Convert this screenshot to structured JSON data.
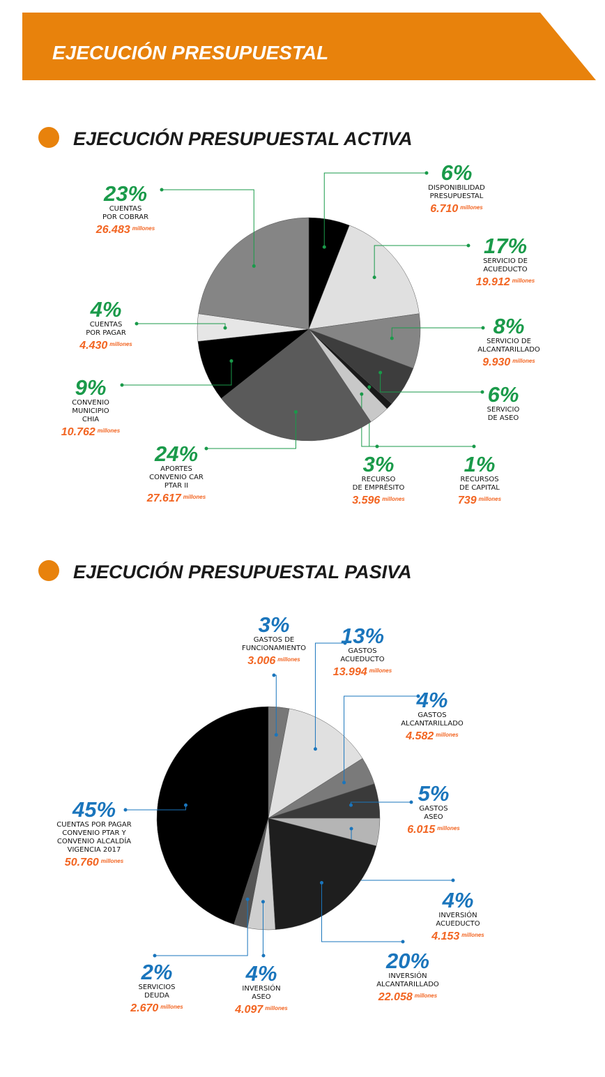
{
  "header": {
    "title": "EJECUCIÓN PRESUPUESTAL"
  },
  "chart_data": [
    {
      "type": "pie",
      "title": "EJECUCIÓN PRESUPUESTAL ACTIVA",
      "unit": "millones",
      "categories": [
        "DISPONIBILIDAD\nPRESUPUESTAL",
        "SERVICIO DE\nACUEDUCTO",
        "SERVICIO DE\nALCANTARILLADO",
        "SERVICIO\nDE ASEO",
        "RECURSOS\nDE CAPITAL",
        "RECURSO\nDE EMPRÉSITO",
        "APORTES\nCONVENIO CAR\nPTAR II",
        "CONVENIO\nMUNICIPIO\nCHIA",
        "CUENTAS\nPOR PAGAR",
        "CUENTAS\nPOR COBRAR"
      ],
      "values": [
        6,
        17,
        8,
        6,
        1,
        3,
        24,
        9,
        4,
        23
      ],
      "value_labels": [
        "6%",
        "17%",
        "8%",
        "6%",
        "1%",
        "3%",
        "24%",
        "9%",
        "4%",
        "23%"
      ],
      "amounts": [
        6710,
        19912,
        9930,
        null,
        739,
        3596,
        27617,
        10762,
        4430,
        26483
      ],
      "amount_labels": [
        "6.710",
        "19.912",
        "9.930",
        null,
        "739",
        "3.596",
        "27.617",
        "10.762",
        "4.430",
        "26.483"
      ],
      "colors": [
        "#000000",
        "#e0e0e0",
        "#858585",
        "#3d3d3d",
        "#1a1a1a",
        "#c8c8c8",
        "#5a5a5a",
        "#000000",
        "#e6e6e6",
        "#858585"
      ],
      "label_color": "#1a9a4a",
      "amount_color": "#f26522"
    },
    {
      "type": "pie",
      "title": "EJECUCIÓN PRESUPUESTAL PASIVA",
      "unit": "millones",
      "categories": [
        "GASTOS DE\nFUNCIONAMIENTO",
        "GASTOS\nACUEDUCTO",
        "GASTOS\nALCANTARILLADO",
        "GASTOS\nASEO",
        "INVERSIÓN\nACUEDUCTO",
        "INVERSIÓN\nALCANTARILLADO",
        "INVERSIÓN\nASEO",
        "SERVICIOS\nDEUDA",
        "CUENTAS POR PAGAR\nCONVENIO PTAR Y\nCONVENIO ALCALDÍA\nVIGENCIA 2017"
      ],
      "values": [
        3,
        13,
        4,
        5,
        4,
        20,
        4,
        2,
        45
      ],
      "value_labels": [
        "3%",
        "13%",
        "4%",
        "5%",
        "4%",
        "20%",
        "4%",
        "2%",
        "45%"
      ],
      "amounts": [
        3006,
        13994,
        4582,
        6015,
        4153,
        22058,
        4097,
        2670,
        50760
      ],
      "amount_labels": [
        "3.006",
        "13.994",
        "4.582",
        "6.015",
        "4.153",
        "22.058",
        "4.097",
        "2.670",
        "50.760"
      ],
      "colors": [
        "#777777",
        "#e0e0e0",
        "#7a7a7a",
        "#3a3a3a",
        "#b5b5b5",
        "#1e1e1e",
        "#cfcfcf",
        "#555555",
        "#000000"
      ],
      "label_color": "#1a75bc",
      "amount_color": "#f26522"
    }
  ]
}
